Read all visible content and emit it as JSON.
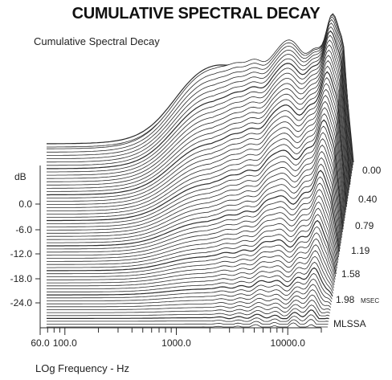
{
  "header": {
    "title": "CUMULATIVE SPECTRAL DECAY",
    "subtitle": "Cumulative Spectral Decay"
  },
  "chart_data": {
    "type": "line",
    "title": "CUMULATIVE SPECTRAL DECAY",
    "subtitle": "Cumulative Spectral Decay",
    "xlabel": "LOg Frequency - Hz",
    "ylabel": "dB",
    "x_scale": "log",
    "xlim": [
      60,
      20000
    ],
    "x_ticks": [
      {
        "value": 60,
        "label": "60.0"
      },
      {
        "value": 100,
        "label": "100.0"
      },
      {
        "value": 1000,
        "label": "1000.0"
      },
      {
        "value": 10000,
        "label": "10000.0"
      }
    ],
    "y_ticks": [
      {
        "value": 0,
        "label": "0.0"
      },
      {
        "value": -6,
        "label": "-6.0"
      },
      {
        "value": -12,
        "label": "-12.0"
      },
      {
        "value": -18,
        "label": "-18.0"
      },
      {
        "value": -24,
        "label": "-24.0"
      }
    ],
    "time_labels": [
      "0.00",
      "0.40",
      "0.79",
      "1.19",
      "1.58",
      "1.98"
    ],
    "time_unit": "MSEC",
    "analyzer": "MLSSA",
    "grid": false,
    "legend": "none",
    "line_color": "#2a2a2a"
  }
}
